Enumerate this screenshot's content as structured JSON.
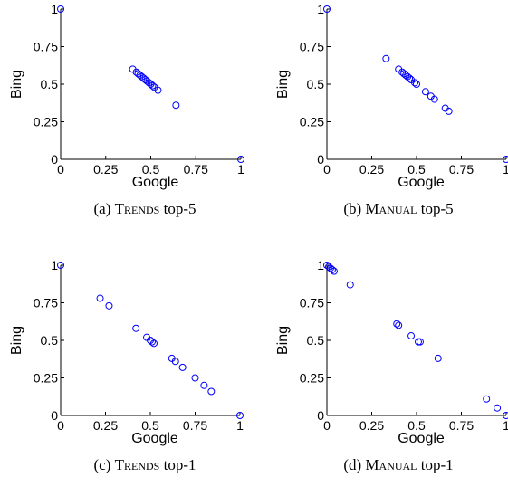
{
  "chart_data": [
    {
      "type": "scatter",
      "caption_prefix": "(a) ",
      "caption_sc": "Trends",
      "caption_suffix": " top-5",
      "xlabel": "Google",
      "ylabel": "Bing",
      "xlim": [
        0,
        1
      ],
      "ylim": [
        0,
        1
      ],
      "xticks": [
        "0",
        "0.25",
        "0.5",
        "0.75",
        "1"
      ],
      "yticks": [
        "0",
        "0.25",
        "0.5",
        "0.75",
        "1"
      ],
      "marker_color": "#0000ff",
      "points": [
        {
          "x": 0.0,
          "y": 1.0
        },
        {
          "x": 1.0,
          "y": 0.0
        },
        {
          "x": 0.4,
          "y": 0.6
        },
        {
          "x": 0.42,
          "y": 0.58
        },
        {
          "x": 0.43,
          "y": 0.57
        },
        {
          "x": 0.44,
          "y": 0.56
        },
        {
          "x": 0.45,
          "y": 0.55
        },
        {
          "x": 0.46,
          "y": 0.54
        },
        {
          "x": 0.47,
          "y": 0.53
        },
        {
          "x": 0.48,
          "y": 0.52
        },
        {
          "x": 0.49,
          "y": 0.51
        },
        {
          "x": 0.5,
          "y": 0.5
        },
        {
          "x": 0.51,
          "y": 0.49
        },
        {
          "x": 0.52,
          "y": 0.48
        },
        {
          "x": 0.54,
          "y": 0.46
        },
        {
          "x": 0.64,
          "y": 0.36
        }
      ]
    },
    {
      "type": "scatter",
      "caption_prefix": "(b) ",
      "caption_sc": "Manual",
      "caption_suffix": " top-5",
      "xlabel": "Google",
      "ylabel": "Bing",
      "xlim": [
        0,
        1
      ],
      "ylim": [
        0,
        1
      ],
      "xticks": [
        "0",
        "0.25",
        "0.5",
        "0.75",
        "1"
      ],
      "yticks": [
        "0",
        "0.25",
        "0.5",
        "0.75",
        "1"
      ],
      "marker_color": "#0000ff",
      "points": [
        {
          "x": 0.0,
          "y": 1.0
        },
        {
          "x": 1.0,
          "y": 0.0
        },
        {
          "x": 0.33,
          "y": 0.67
        },
        {
          "x": 0.4,
          "y": 0.6
        },
        {
          "x": 0.42,
          "y": 0.58
        },
        {
          "x": 0.43,
          "y": 0.57
        },
        {
          "x": 0.44,
          "y": 0.56
        },
        {
          "x": 0.45,
          "y": 0.55
        },
        {
          "x": 0.46,
          "y": 0.54
        },
        {
          "x": 0.47,
          "y": 0.53
        },
        {
          "x": 0.49,
          "y": 0.51
        },
        {
          "x": 0.5,
          "y": 0.5
        },
        {
          "x": 0.55,
          "y": 0.45
        },
        {
          "x": 0.58,
          "y": 0.42
        },
        {
          "x": 0.6,
          "y": 0.4
        },
        {
          "x": 0.66,
          "y": 0.34
        },
        {
          "x": 0.68,
          "y": 0.32
        }
      ]
    },
    {
      "type": "scatter",
      "caption_prefix": "(c) ",
      "caption_sc": "Trends",
      "caption_suffix": " top-1",
      "xlabel": "Google",
      "ylabel": "Bing",
      "xlim": [
        0,
        1
      ],
      "ylim": [
        0,
        1
      ],
      "xticks": [
        "0",
        "0.25",
        "0.5",
        "0.75",
        "1"
      ],
      "yticks": [
        "0",
        "0.25",
        "0.5",
        "0.75",
        "1"
      ],
      "marker_color": "#0000ff",
      "points": [
        {
          "x": 0.0,
          "y": 1.0
        },
        {
          "x": 1.0,
          "y": 0.0
        },
        {
          "x": 0.22,
          "y": 0.78
        },
        {
          "x": 0.27,
          "y": 0.73
        },
        {
          "x": 0.42,
          "y": 0.58
        },
        {
          "x": 0.48,
          "y": 0.52
        },
        {
          "x": 0.5,
          "y": 0.5
        },
        {
          "x": 0.51,
          "y": 0.49
        },
        {
          "x": 0.52,
          "y": 0.48
        },
        {
          "x": 0.62,
          "y": 0.38
        },
        {
          "x": 0.64,
          "y": 0.36
        },
        {
          "x": 0.68,
          "y": 0.32
        },
        {
          "x": 0.75,
          "y": 0.25
        },
        {
          "x": 0.8,
          "y": 0.2
        },
        {
          "x": 0.84,
          "y": 0.16
        }
      ]
    },
    {
      "type": "scatter",
      "caption_prefix": "(d) ",
      "caption_sc": "Manual",
      "caption_suffix": " top-1",
      "xlabel": "Google",
      "ylabel": "Bing",
      "xlim": [
        0,
        1
      ],
      "ylim": [
        0,
        1
      ],
      "xticks": [
        "0",
        "0.25",
        "0.5",
        "0.75",
        "1"
      ],
      "yticks": [
        "0",
        "0.25",
        "0.5",
        "0.75",
        "1"
      ],
      "marker_color": "#0000ff",
      "points": [
        {
          "x": 0.0,
          "y": 1.0
        },
        {
          "x": 1.0,
          "y": 0.0
        },
        {
          "x": 0.01,
          "y": 0.99
        },
        {
          "x": 0.02,
          "y": 0.98
        },
        {
          "x": 0.03,
          "y": 0.97
        },
        {
          "x": 0.04,
          "y": 0.96
        },
        {
          "x": 0.13,
          "y": 0.87
        },
        {
          "x": 0.39,
          "y": 0.61
        },
        {
          "x": 0.4,
          "y": 0.6
        },
        {
          "x": 0.47,
          "y": 0.53
        },
        {
          "x": 0.51,
          "y": 0.49
        },
        {
          "x": 0.52,
          "y": 0.49
        },
        {
          "x": 0.62,
          "y": 0.38
        },
        {
          "x": 0.89,
          "y": 0.11
        },
        {
          "x": 0.95,
          "y": 0.05
        }
      ]
    }
  ]
}
